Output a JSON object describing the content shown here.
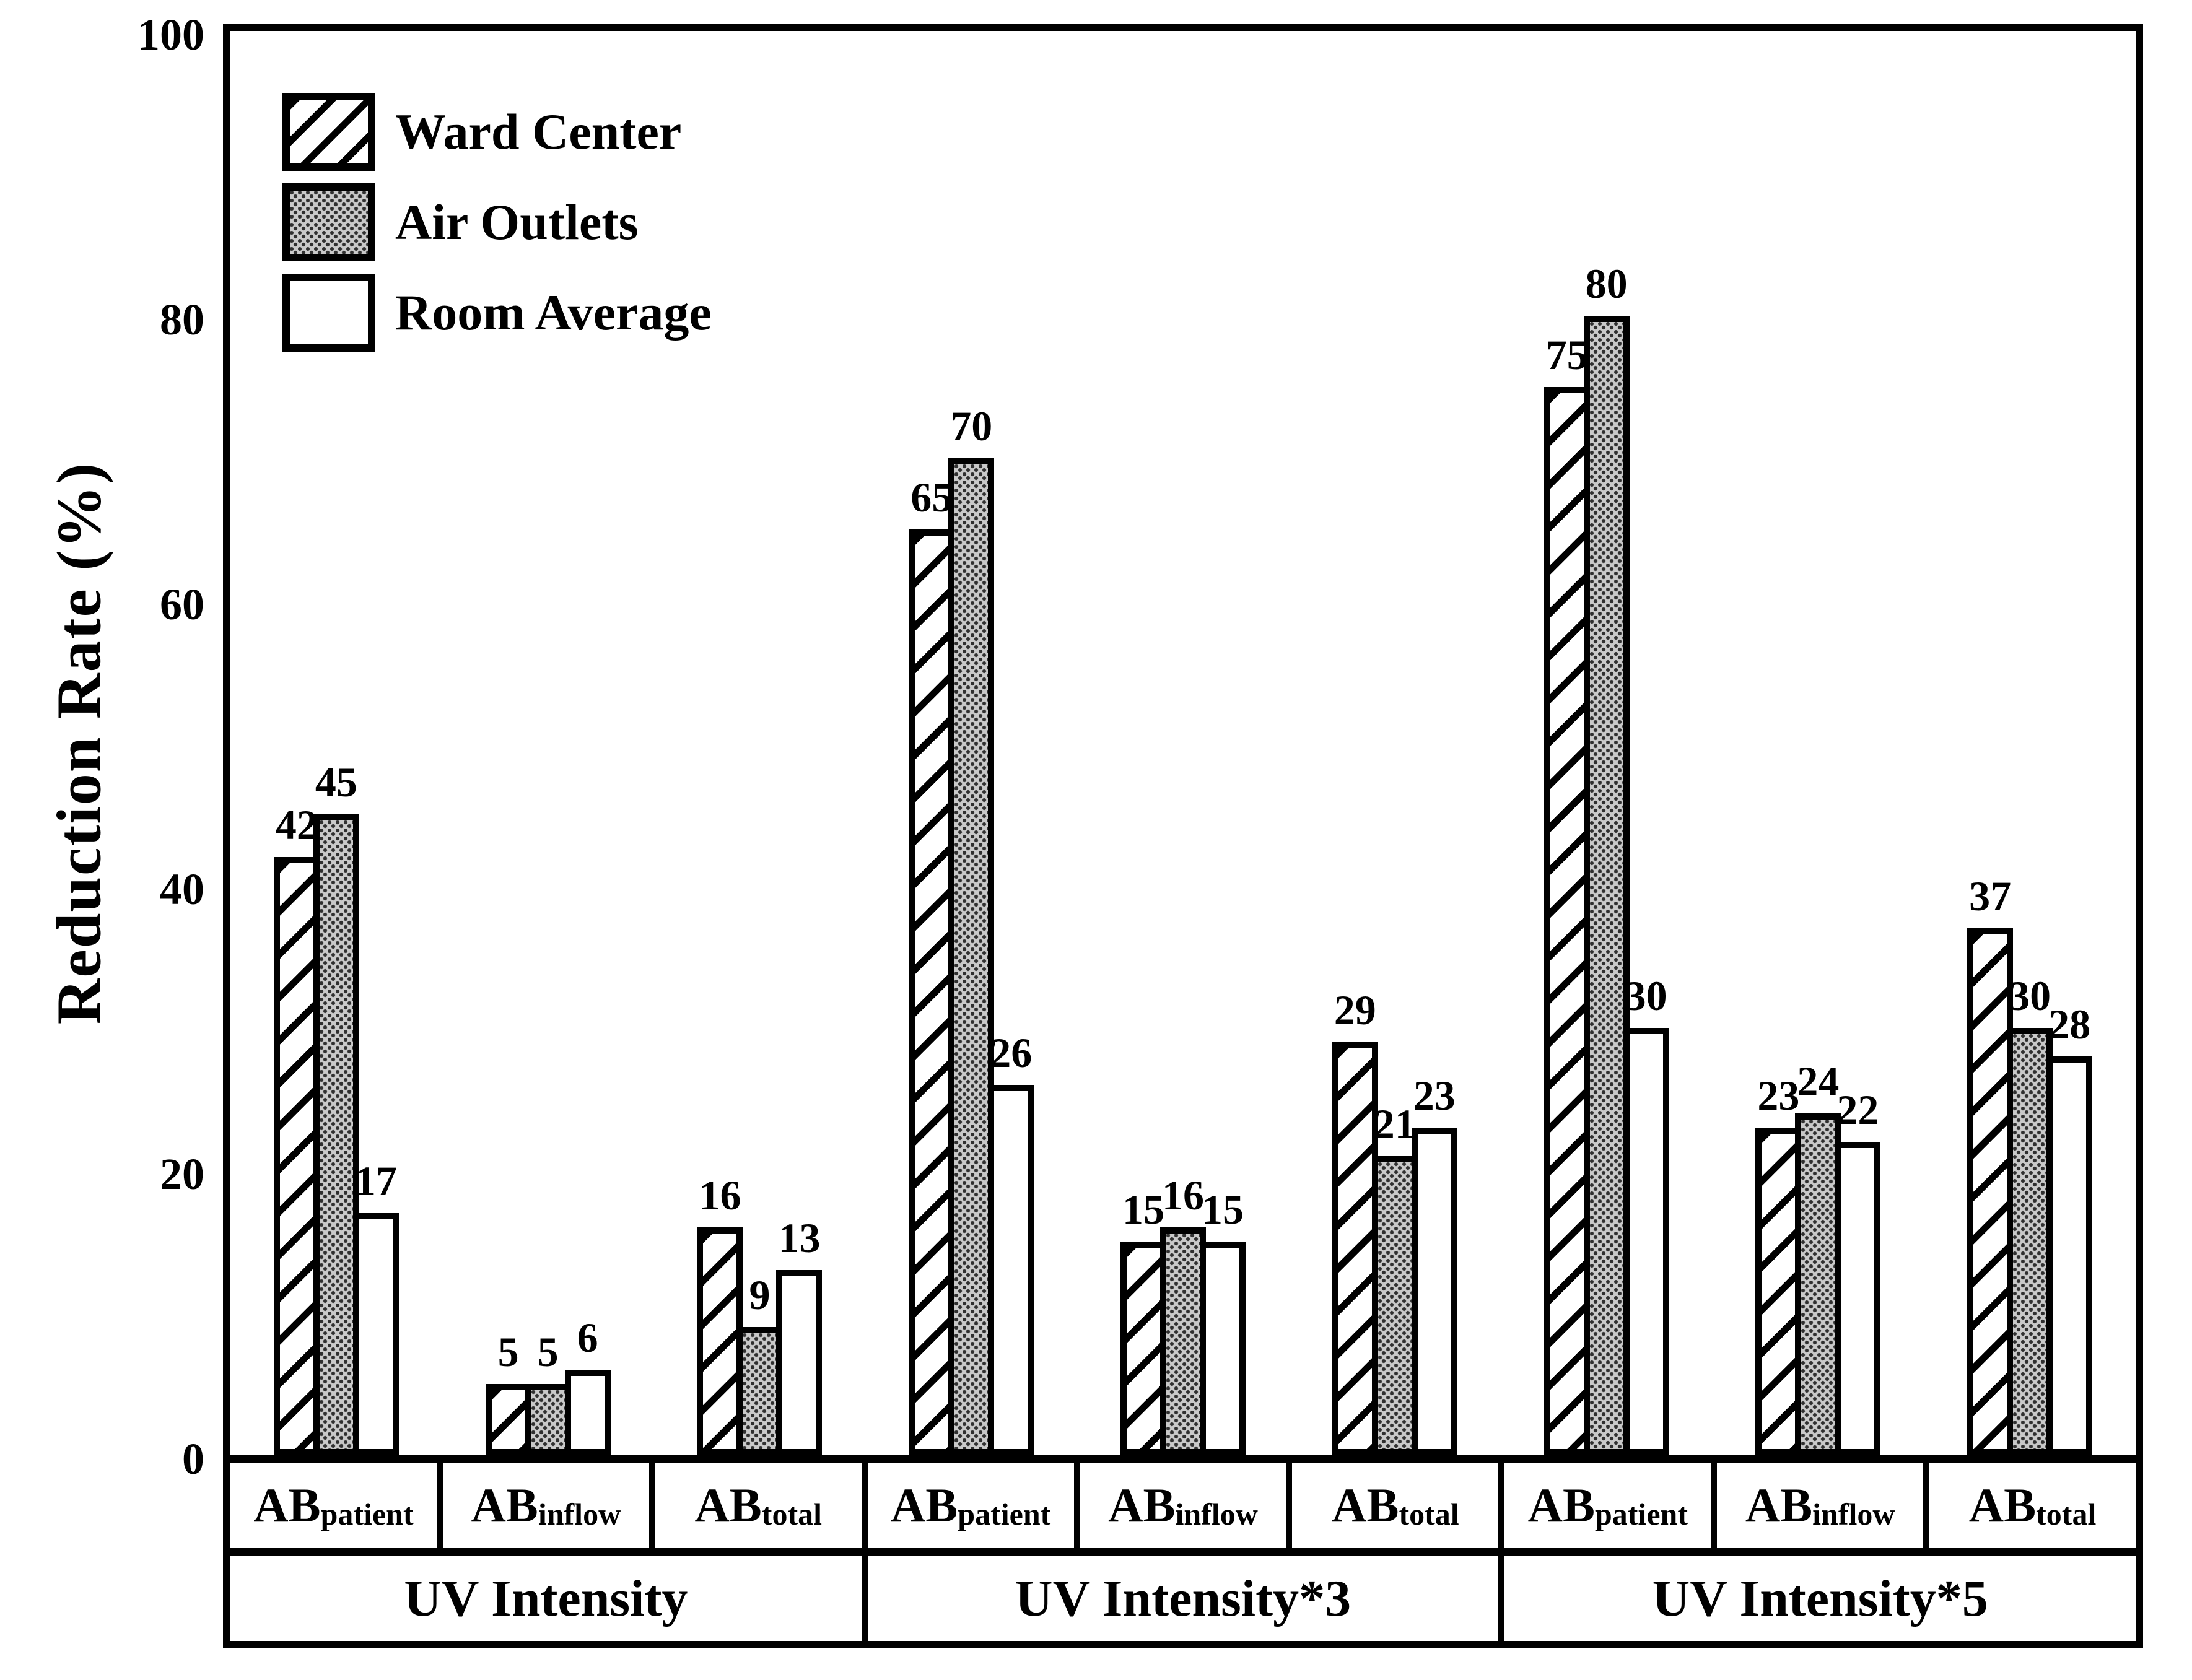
{
  "chart_data": {
    "type": "bar",
    "title": "",
    "ylabel": "Reduction Rate (%)",
    "ylim": [
      0,
      100
    ],
    "yticks": [
      0,
      20,
      40,
      60,
      80,
      100
    ],
    "grid": "off",
    "legend_position": "top-left-inside",
    "series": [
      {
        "name": "Ward Center",
        "pattern": "diagonal-hatch"
      },
      {
        "name": "Air Outlets",
        "pattern": "gray-dot-halftone"
      },
      {
        "name": "Room Average",
        "pattern": "white"
      }
    ],
    "groups": [
      {
        "label": "UV Intensity",
        "subgroups": [
          {
            "label_main": "AB",
            "label_sub": "patient",
            "values": [
              42,
              45,
              17
            ]
          },
          {
            "label_main": "AB",
            "label_sub": "inflow",
            "values": [
              5,
              5,
              6
            ]
          },
          {
            "label_main": "AB",
            "label_sub": "total",
            "values": [
              16,
              9,
              13
            ]
          }
        ]
      },
      {
        "label": "UV Intensity*3",
        "subgroups": [
          {
            "label_main": "AB",
            "label_sub": "patient",
            "values": [
              65,
              70,
              26
            ]
          },
          {
            "label_main": "AB",
            "label_sub": "inflow",
            "values": [
              15,
              16,
              15
            ]
          },
          {
            "label_main": "AB",
            "label_sub": "total",
            "values": [
              29,
              21,
              23
            ]
          }
        ]
      },
      {
        "label": "UV Intensity*5",
        "subgroups": [
          {
            "label_main": "AB",
            "label_sub": "patient",
            "values": [
              75,
              80,
              30
            ]
          },
          {
            "label_main": "AB",
            "label_sub": "inflow",
            "values": [
              23,
              24,
              22
            ]
          },
          {
            "label_main": "AB",
            "label_sub": "total",
            "values": [
              37,
              30,
              28
            ]
          }
        ]
      }
    ],
    "colors": {
      "ink": "#000000",
      "background": "#ffffff",
      "dot_fill_average": "#9a9a9a"
    }
  }
}
